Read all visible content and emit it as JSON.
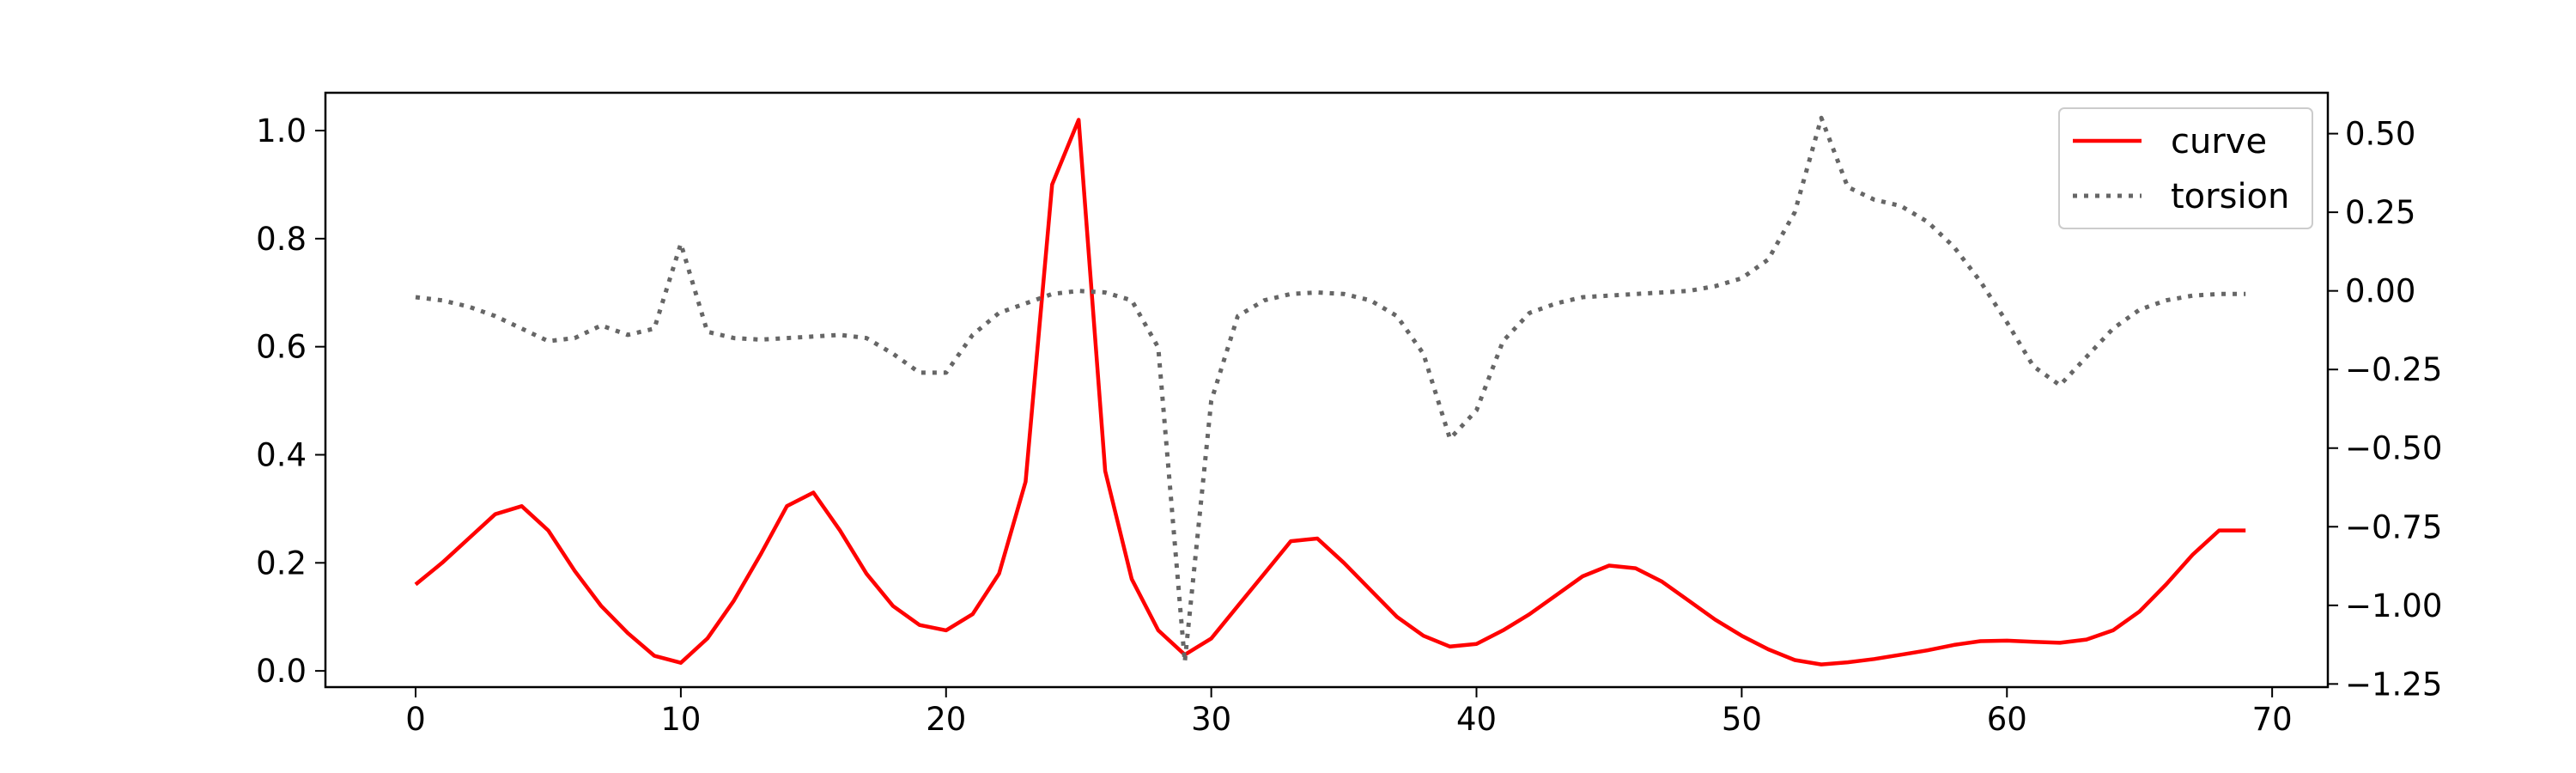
{
  "chart_data": {
    "type": "line",
    "title": "",
    "xlabel": "",
    "ylabel": "",
    "y2label": "",
    "grid": false,
    "legend_position": "top-right",
    "xlim": [
      -3.4,
      72.1
    ],
    "ylim": [
      -0.03,
      1.07
    ],
    "y2lim": [
      -1.26,
      0.63
    ],
    "xticks": [
      0,
      10,
      20,
      30,
      40,
      50,
      60,
      70
    ],
    "xtick_labels": [
      "0",
      "10",
      "20",
      "30",
      "40",
      "50",
      "60",
      "70"
    ],
    "yticks": [
      0.0,
      0.2,
      0.4,
      0.6,
      0.8,
      1.0
    ],
    "ytick_labels": [
      "0.0",
      "0.2",
      "0.4",
      "0.6",
      "0.8",
      "1.0"
    ],
    "y2ticks": [
      0.5,
      0.25,
      0.0,
      -0.25,
      -0.5,
      -0.75,
      -1.0,
      -1.25
    ],
    "y2tick_labels": [
      "0.50",
      "0.25",
      "0.00",
      "−0.25",
      "−0.50",
      "−0.75",
      "−1.00",
      "−1.25"
    ],
    "series": [
      {
        "name": "curve",
        "axis": "left",
        "color": "#ff0000",
        "style": "solid",
        "x": [
          0,
          1,
          2,
          3,
          4,
          5,
          6,
          7,
          8,
          9,
          10,
          11,
          12,
          13,
          14,
          15,
          16,
          17,
          18,
          19,
          20,
          21,
          22,
          23,
          24,
          25,
          26,
          27,
          28,
          29,
          30,
          31,
          32,
          33,
          34,
          35,
          36,
          37,
          38,
          39,
          40,
          41,
          42,
          43,
          44,
          45,
          46,
          47,
          48,
          49,
          50,
          51,
          52,
          53,
          54,
          55,
          56,
          57,
          58,
          59,
          60,
          61,
          62,
          63,
          64,
          65,
          66,
          67,
          68,
          69
        ],
        "y": [
          0.16,
          0.2,
          0.245,
          0.29,
          0.305,
          0.26,
          0.185,
          0.12,
          0.07,
          0.028,
          0.015,
          0.06,
          0.13,
          0.215,
          0.305,
          0.33,
          0.26,
          0.18,
          0.12,
          0.085,
          0.075,
          0.105,
          0.18,
          0.35,
          0.9,
          1.02,
          0.37,
          0.17,
          0.075,
          0.03,
          0.06,
          0.12,
          0.18,
          0.24,
          0.245,
          0.2,
          0.15,
          0.1,
          0.065,
          0.045,
          0.05,
          0.075,
          0.105,
          0.14,
          0.175,
          0.195,
          0.19,
          0.165,
          0.13,
          0.095,
          0.065,
          0.04,
          0.02,
          0.012,
          0.016,
          0.022,
          0.03,
          0.038,
          0.048,
          0.055,
          0.056,
          0.054,
          0.052,
          0.058,
          0.075,
          0.11,
          0.16,
          0.215,
          0.26,
          0.26
        ]
      },
      {
        "name": "torsion",
        "axis": "right",
        "color": "#666666",
        "style": "dotted",
        "x": [
          0,
          1,
          2,
          3,
          4,
          5,
          6,
          7,
          8,
          9,
          10,
          11,
          12,
          13,
          14,
          15,
          16,
          17,
          18,
          19,
          20,
          21,
          22,
          23,
          24,
          25,
          26,
          27,
          28,
          29,
          30,
          31,
          32,
          33,
          34,
          35,
          36,
          37,
          38,
          39,
          40,
          41,
          42,
          43,
          44,
          45,
          46,
          47,
          48,
          49,
          50,
          51,
          52,
          53,
          54,
          55,
          56,
          57,
          58,
          59,
          60,
          61,
          62,
          63,
          64,
          65,
          66,
          67,
          68,
          69
        ],
        "y": [
          -0.02,
          -0.03,
          -0.05,
          -0.08,
          -0.12,
          -0.16,
          -0.15,
          -0.11,
          -0.14,
          -0.12,
          0.15,
          -0.13,
          -0.15,
          -0.155,
          -0.15,
          -0.145,
          -0.14,
          -0.15,
          -0.2,
          -0.26,
          -0.26,
          -0.14,
          -0.07,
          -0.04,
          -0.01,
          0.0,
          -0.005,
          -0.03,
          -0.18,
          -1.18,
          -0.35,
          -0.08,
          -0.03,
          -0.01,
          -0.005,
          -0.01,
          -0.03,
          -0.08,
          -0.2,
          -0.47,
          -0.38,
          -0.16,
          -0.07,
          -0.04,
          -0.02,
          -0.015,
          -0.01,
          -0.005,
          0.0,
          0.015,
          0.04,
          0.1,
          0.25,
          0.55,
          0.33,
          0.29,
          0.27,
          0.22,
          0.14,
          0.03,
          -0.1,
          -0.24,
          -0.3,
          -0.21,
          -0.12,
          -0.06,
          -0.03,
          -0.015,
          -0.01,
          -0.01
        ]
      }
    ]
  }
}
